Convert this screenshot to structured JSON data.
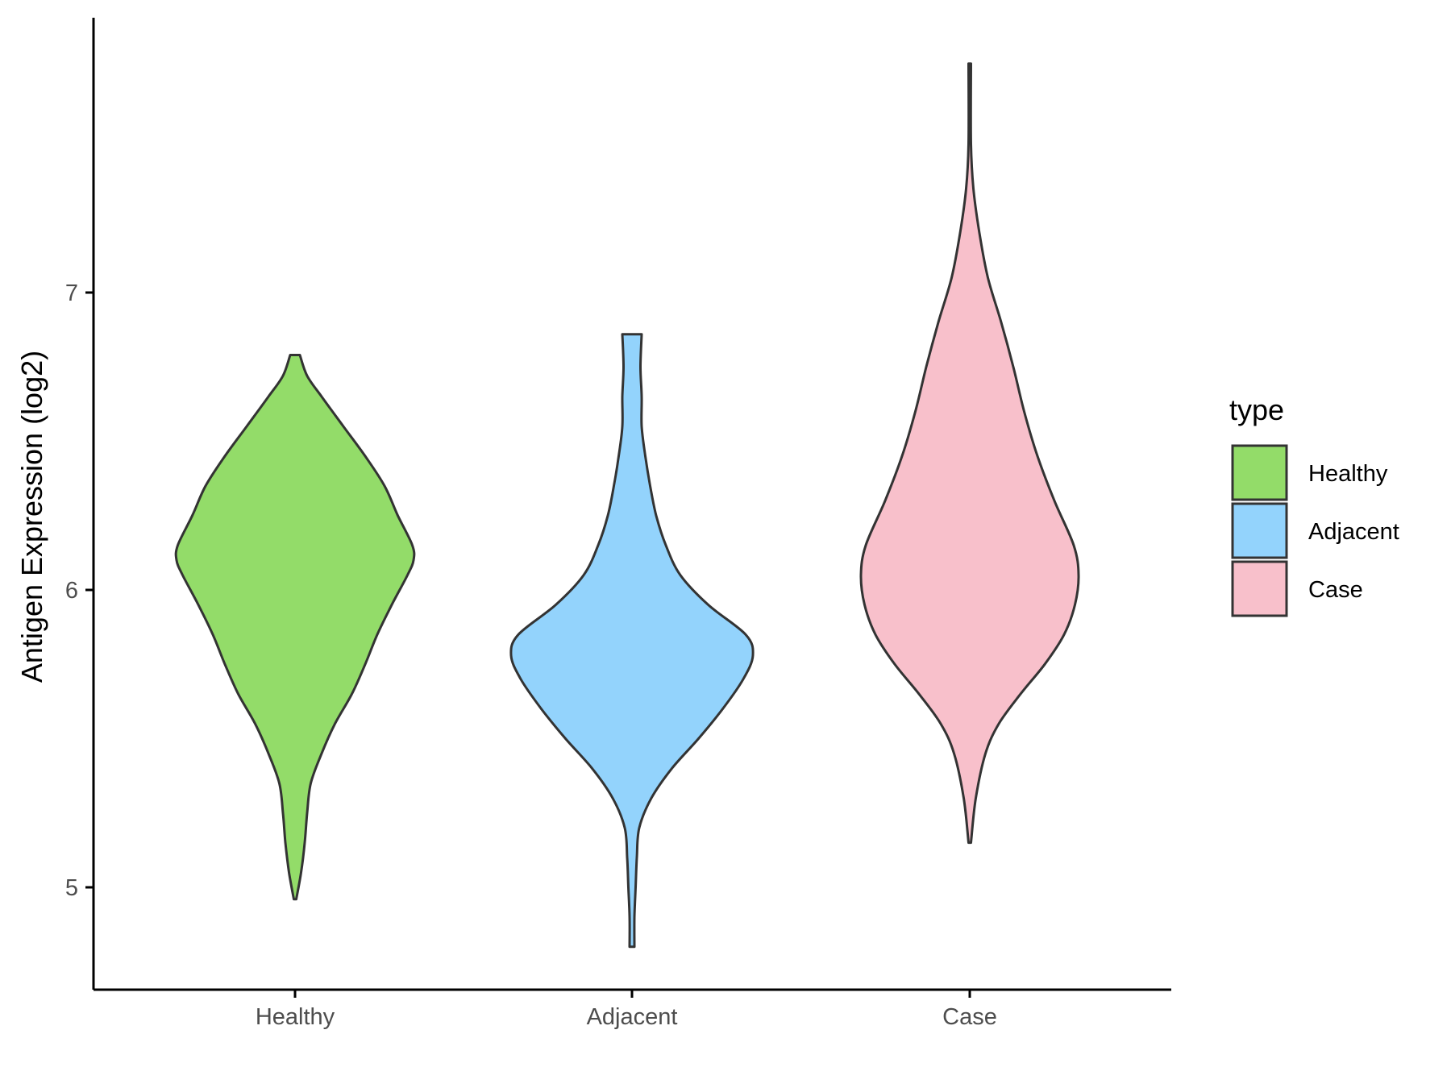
{
  "chart_data": {
    "type": "violin",
    "title": "",
    "xlabel": "",
    "ylabel": "Antigen Expression (log2)",
    "categories": [
      "Healthy",
      "Adjacent",
      "Case"
    ],
    "ylim": [
      4.65,
      8.0
    ],
    "yticks": [
      5,
      6,
      7
    ],
    "ytick_labels": [
      "5",
      "6",
      "7"
    ],
    "grid": false,
    "legend": {
      "title": "type",
      "position": "right",
      "entries": [
        "Healthy",
        "Adjacent",
        "Case"
      ]
    },
    "colors": {
      "Healthy": "#93dc69",
      "Adjacent": "#93d3fc",
      "Case": "#f8c0cb",
      "outline": "#333333",
      "axis": "#000000"
    },
    "series": [
      {
        "category": "Healthy",
        "min": 4.96,
        "max": 6.79,
        "density": [
          [
            4.96,
            0.01
          ],
          [
            5.05,
            0.05
          ],
          [
            5.15,
            0.08
          ],
          [
            5.25,
            0.1
          ],
          [
            5.35,
            0.13
          ],
          [
            5.45,
            0.22
          ],
          [
            5.55,
            0.33
          ],
          [
            5.65,
            0.47
          ],
          [
            5.75,
            0.58
          ],
          [
            5.85,
            0.68
          ],
          [
            5.95,
            0.8
          ],
          [
            6.05,
            0.93
          ],
          [
            6.1,
            0.98
          ],
          [
            6.15,
            0.97
          ],
          [
            6.25,
            0.85
          ],
          [
            6.35,
            0.74
          ],
          [
            6.45,
            0.58
          ],
          [
            6.55,
            0.4
          ],
          [
            6.65,
            0.22
          ],
          [
            6.72,
            0.1
          ],
          [
            6.79,
            0.04
          ]
        ]
      },
      {
        "category": "Adjacent",
        "min": 4.8,
        "max": 6.86,
        "density": [
          [
            4.8,
            0.02
          ],
          [
            4.9,
            0.02
          ],
          [
            5.0,
            0.03
          ],
          [
            5.1,
            0.04
          ],
          [
            5.2,
            0.06
          ],
          [
            5.3,
            0.16
          ],
          [
            5.4,
            0.33
          ],
          [
            5.5,
            0.55
          ],
          [
            5.6,
            0.75
          ],
          [
            5.7,
            0.92
          ],
          [
            5.78,
            1.0
          ],
          [
            5.85,
            0.94
          ],
          [
            5.95,
            0.63
          ],
          [
            6.05,
            0.4
          ],
          [
            6.15,
            0.28
          ],
          [
            6.25,
            0.2
          ],
          [
            6.35,
            0.15
          ],
          [
            6.45,
            0.11
          ],
          [
            6.55,
            0.08
          ],
          [
            6.65,
            0.08
          ],
          [
            6.75,
            0.07
          ],
          [
            6.86,
            0.08
          ]
        ]
      },
      {
        "category": "Case",
        "min": 5.15,
        "max": 7.77,
        "density": [
          [
            5.15,
            0.01
          ],
          [
            5.3,
            0.05
          ],
          [
            5.45,
            0.13
          ],
          [
            5.55,
            0.24
          ],
          [
            5.65,
            0.42
          ],
          [
            5.75,
            0.62
          ],
          [
            5.85,
            0.78
          ],
          [
            5.95,
            0.87
          ],
          [
            6.05,
            0.9
          ],
          [
            6.15,
            0.86
          ],
          [
            6.3,
            0.7
          ],
          [
            6.45,
            0.56
          ],
          [
            6.6,
            0.45
          ],
          [
            6.75,
            0.36
          ],
          [
            6.9,
            0.26
          ],
          [
            7.05,
            0.15
          ],
          [
            7.2,
            0.08
          ],
          [
            7.35,
            0.03
          ],
          [
            7.5,
            0.01
          ],
          [
            7.77,
            0.01
          ]
        ]
      }
    ]
  }
}
